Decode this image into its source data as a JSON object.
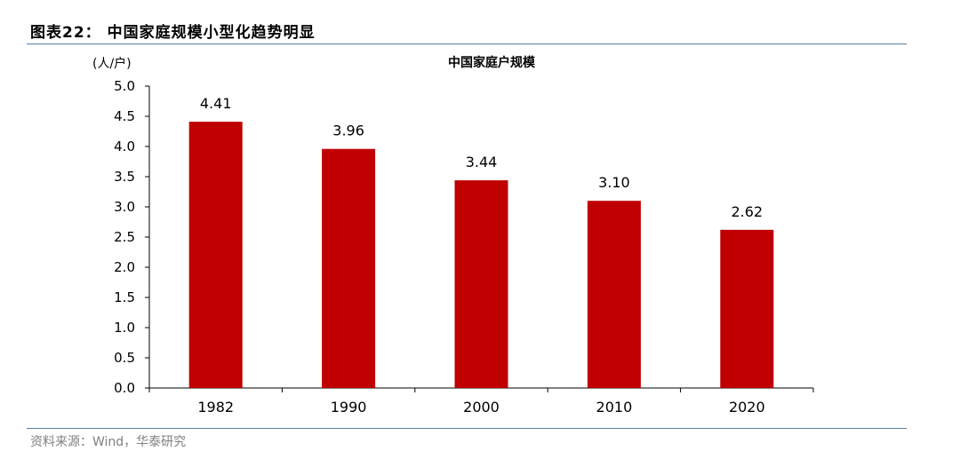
{
  "figure_title": "图表22：  中国家庭规模小型化趋势明显",
  "source": "资料来源：Wind，华泰研究",
  "colors": {
    "bar": "#c00000",
    "rule": "#5b7fa6",
    "source_text": "#808080"
  },
  "chart_data": {
    "type": "bar",
    "title": "中国家庭户规模",
    "unit_label": "(人/户)",
    "categories": [
      "1982",
      "1990",
      "2000",
      "2010",
      "2020"
    ],
    "values": [
      4.41,
      3.96,
      3.44,
      3.1,
      2.62
    ],
    "data_labels": [
      "4.41",
      "3.96",
      "3.44",
      "3.10",
      "2.62"
    ],
    "yticks": [
      "0.0",
      "0.5",
      "1.0",
      "1.5",
      "2.0",
      "2.5",
      "3.0",
      "3.5",
      "4.0",
      "4.5",
      "5.0"
    ],
    "ylim": [
      0,
      5
    ],
    "grid": false,
    "legend": "none"
  }
}
